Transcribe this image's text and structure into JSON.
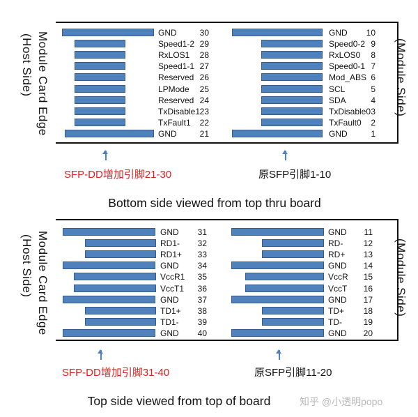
{
  "diagrams": [
    {
      "host_label": [
        "Module Card Edge",
        "(Host Side)"
      ],
      "module_label": "(Module Side)",
      "left_pins": [
        {
          "name": "GND",
          "num": "30"
        },
        {
          "name": "Speed1-2",
          "num": "29"
        },
        {
          "name": "RxLOS1",
          "num": "28"
        },
        {
          "name": "Speed1-1",
          "num": "27"
        },
        {
          "name": "Reserved",
          "num": "26"
        },
        {
          "name": "LPMode",
          "num": "25"
        },
        {
          "name": "Reserved",
          "num": "24"
        },
        {
          "name": "TxDisable1",
          "num": "23"
        },
        {
          "name": "TxFault1",
          "num": "22"
        },
        {
          "name": "GND",
          "num": "21"
        }
      ],
      "right_pins": [
        {
          "name": "GND",
          "num": "10"
        },
        {
          "name": "Speed0-2",
          "num": "9"
        },
        {
          "name": "RxLOS0",
          "num": "8"
        },
        {
          "name": "Speed0-1",
          "num": "7"
        },
        {
          "name": "Mod_ABS",
          "num": "6"
        },
        {
          "name": "SCL",
          "num": "5"
        },
        {
          "name": "SDA",
          "num": "4"
        },
        {
          "name": "TxDisable0",
          "num": "3"
        },
        {
          "name": "TxFault0",
          "num": "2"
        },
        {
          "name": "GND",
          "num": "1"
        }
      ],
      "left_note": "SFP-DD增加引脚21-30",
      "right_note": "原SFP引脚1-10",
      "caption": "Bottom side viewed from top thru board"
    },
    {
      "host_label": [
        "Module Card Edge",
        "(Host Side)"
      ],
      "module_label": "(Module Side)",
      "left_pins": [
        {
          "name": "GND",
          "num": "31"
        },
        {
          "name": "RD1-",
          "num": "32"
        },
        {
          "name": "RD1+",
          "num": "33"
        },
        {
          "name": "GND",
          "num": "34"
        },
        {
          "name": "VccR1",
          "num": "35"
        },
        {
          "name": "VccT1",
          "num": "36"
        },
        {
          "name": "GND",
          "num": "37"
        },
        {
          "name": "TD1+",
          "num": "38"
        },
        {
          "name": "TD1-",
          "num": "39"
        },
        {
          "name": "GND",
          "num": "40"
        }
      ],
      "right_pins": [
        {
          "name": "GND",
          "num": "11"
        },
        {
          "name": "RD-",
          "num": "12"
        },
        {
          "name": "RD+",
          "num": "13"
        },
        {
          "name": "GND",
          "num": "14"
        },
        {
          "name": "VccR",
          "num": "15"
        },
        {
          "name": "VccT",
          "num": "16"
        },
        {
          "name": "GND",
          "num": "17"
        },
        {
          "name": "TD+",
          "num": "18"
        },
        {
          "name": "TD-",
          "num": "19"
        },
        {
          "name": "GND",
          "num": "20"
        }
      ],
      "left_note": "SFP-DD增加引脚31-40",
      "right_note": "原SFP引脚11-20",
      "caption": "Top side viewed from top of board"
    }
  ],
  "watermark": "知乎 @小透明popo",
  "colors": {
    "pad_fill": "#4f81bd",
    "pad_border": "#385d8a",
    "accent_red": "#e02020"
  }
}
